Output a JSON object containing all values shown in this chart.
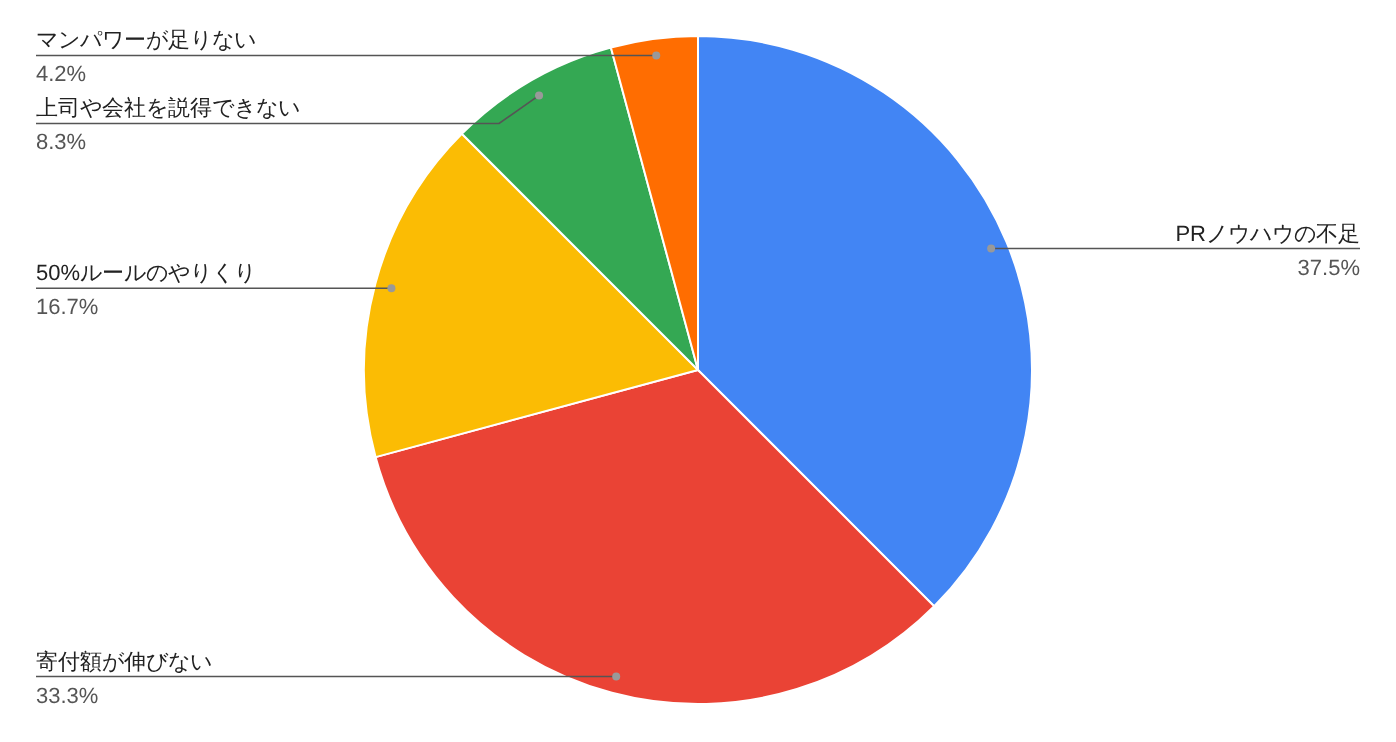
{
  "chart_data": {
    "type": "pie",
    "categories": [
      "PRノウハウの不足",
      "寄付額が伸びない",
      "50%ルールのやりくり",
      "上司や会社を説得できない",
      "マンパワーが足りない"
    ],
    "values": [
      37.5,
      33.3,
      16.7,
      8.3,
      4.2
    ],
    "colors": [
      "#4285f4",
      "#ea4335",
      "#fbbc04",
      "#34a853",
      "#ff6d01"
    ],
    "value_labels": [
      "37.5%",
      "33.3%",
      "16.7%",
      "8.3%",
      "4.2%"
    ]
  }
}
